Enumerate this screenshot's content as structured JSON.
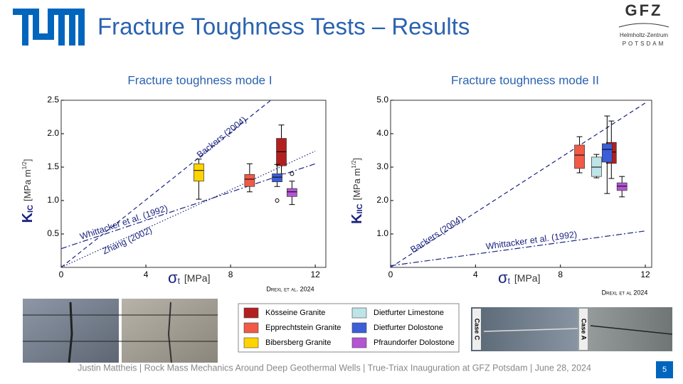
{
  "header": {
    "title": "Fracture Toughness Tests – Results",
    "gfz": "GFZ",
    "gfz_line1": "Helmholtz-Zentrum",
    "gfz_line2": "POTSDAM"
  },
  "legend": [
    {
      "name": "Kösseine Granite",
      "color": "#b31f1f"
    },
    {
      "name": "Epprechtstein Granite",
      "color": "#f05a46"
    },
    {
      "name": "Bibersberg Granite",
      "color": "#ffd400"
    },
    {
      "name": "Dietfurter Limestone",
      "color": "#bfe4e8"
    },
    {
      "name": "Dietfurter Dolostone",
      "color": "#3b5fd8"
    },
    {
      "name": "Pfraundorfer Dolostone",
      "color": "#b455d4"
    }
  ],
  "photos": {
    "left_case": "Case C",
    "right_case": "Case A"
  },
  "chart_data": [
    {
      "type": "box",
      "title": "Fracture toughness mode I",
      "x_symbol": "σ",
      "x_subscript": "t",
      "x_unit": "[MPa]",
      "y_symbol": "K",
      "y_subscript": "IC",
      "y_unit": "[MPa m",
      "y_unit_exp": "1/2",
      "y_unit_end": "]",
      "credit": "Drexl et al. 2024",
      "xlim": [
        0,
        12.5
      ],
      "xticks": [
        0,
        4,
        8,
        12
      ],
      "ylim": [
        0,
        2.5
      ],
      "yticks": [
        0.5,
        {
          "value": 1,
          "label": "1.0"
        },
        1.5,
        {
          "value": 2,
          "label": "2.0"
        },
        2.5
      ],
      "line_color": "#1a237e",
      "lines": [
        {
          "label": "Backers (2004)",
          "style": "dashed",
          "x": [
            0,
            9.9
          ],
          "y": [
            0,
            2.5
          ]
        },
        {
          "label": "Whittacker et al. (1992)",
          "style": "dashdot",
          "x": [
            0,
            12
          ],
          "y": [
            0.28,
            1.55
          ]
        },
        {
          "label": "Zhang (2002)",
          "style": "dotted",
          "x": [
            0,
            12
          ],
          "y": [
            0,
            1.74
          ]
        }
      ],
      "boxes": [
        {
          "legend_entry": 2,
          "x": 6.5,
          "min": 1.02,
          "q1": 1.29,
          "median": 1.45,
          "q3": 1.55,
          "max": 1.62
        },
        {
          "legend_entry": 1,
          "x": 8.9,
          "min": 1.13,
          "q1": 1.21,
          "median": 1.32,
          "q3": 1.39,
          "max": 1.55
        },
        {
          "legend_entry": 0,
          "x": 10.4,
          "min": 1.4,
          "q1": 1.52,
          "median": 1.73,
          "q3": 1.93,
          "max": 2.13
        },
        {
          "legend_entry": 4,
          "x": 10.2,
          "min": 1.21,
          "q1": 1.28,
          "median": 1.35,
          "q3": 1.4,
          "max": 1.54,
          "outliers": [
            1.0
          ]
        },
        {
          "legend_entry": 5,
          "x": 10.9,
          "min": 0.94,
          "q1": 1.06,
          "median": 1.13,
          "q3": 1.18,
          "max": 1.29,
          "outliers": [
            1.4
          ]
        }
      ]
    },
    {
      "type": "box",
      "title": "Fracture toughness mode II",
      "x_symbol": "σ",
      "x_subscript": "t",
      "x_unit": "[MPa]",
      "y_symbol": "K",
      "y_subscript": "IIC",
      "y_unit": "[MPa m",
      "y_unit_exp": "1/2",
      "y_unit_end": "]",
      "credit": "Drexl et al 2024",
      "xlim": [
        0,
        12.3
      ],
      "xticks": [
        0,
        4,
        8,
        12
      ],
      "ylim": [
        0,
        5
      ],
      "yticks": [
        {
          "value": 1,
          "label": "1.0"
        },
        {
          "value": 2,
          "label": "2.0"
        },
        {
          "value": 3,
          "label": "3.0"
        },
        {
          "value": 4,
          "label": "4.0"
        },
        {
          "value": 5,
          "label": "5.0"
        }
      ],
      "line_color": "#1a237e",
      "lines": [
        {
          "label": "Backers (2004)",
          "style": "dashed",
          "x": [
            0,
            12
          ],
          "y": [
            0,
            4.92
          ]
        },
        {
          "label": "Whittacker et al. (1992)",
          "style": "dashdot",
          "x": [
            0,
            12
          ],
          "y": [
            0.05,
            1.09
          ]
        }
      ],
      "boxes": [
        {
          "legend_entry": 1,
          "x": 8.9,
          "min": 2.83,
          "q1": 2.96,
          "median": 3.36,
          "q3": 3.66,
          "max": 3.91
        },
        {
          "legend_entry": 3,
          "x": 9.7,
          "min": 2.68,
          "q1": 2.72,
          "median": 3.0,
          "q3": 3.3,
          "max": 3.38
        },
        {
          "legend_entry": 0,
          "x": 10.4,
          "min": 2.66,
          "q1": 3.11,
          "median": 3.45,
          "q3": 3.74,
          "max": 4.38
        },
        {
          "legend_entry": 4,
          "x": 10.2,
          "min": 2.21,
          "q1": 3.15,
          "median": 3.53,
          "q3": 3.7,
          "max": 4.53
        },
        {
          "legend_entry": 5,
          "x": 10.9,
          "min": 2.11,
          "q1": 2.3,
          "median": 2.43,
          "q3": 2.53,
          "max": 2.72
        }
      ]
    }
  ],
  "footer": {
    "text": "Justin Mattheis | Rock Mass Mechanics Around Deep Geothermal Wells | True-Triax Inauguration at GFZ Potsdam | June 28, 2024",
    "page": "5"
  }
}
